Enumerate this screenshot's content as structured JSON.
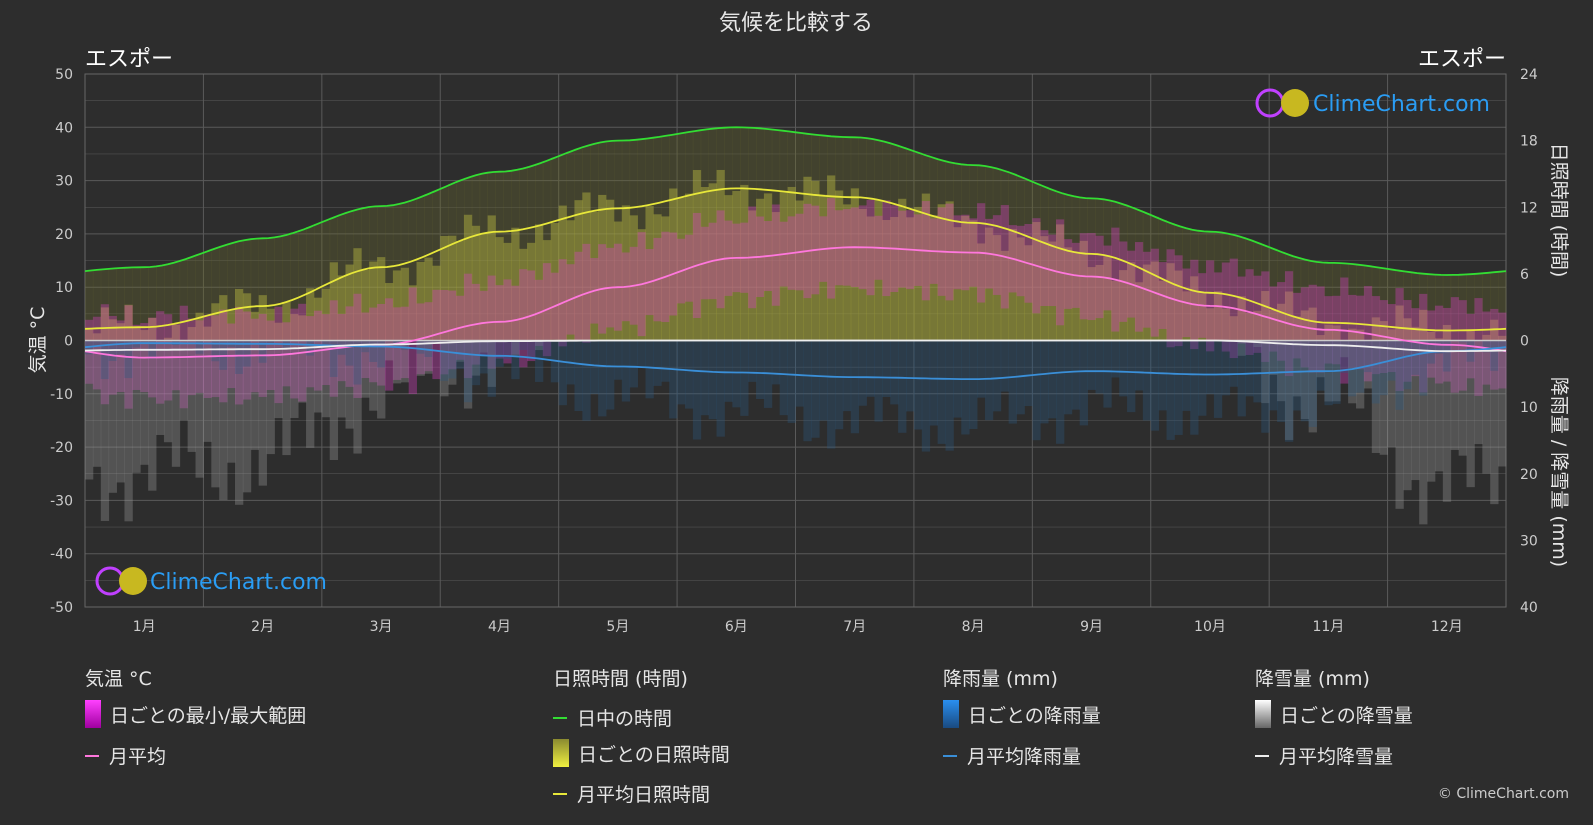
{
  "title": "気候を比較する",
  "location_left": "エスポー",
  "location_right": "エスポー",
  "copyright": "© ClimeChart.com",
  "watermark": "ClimeChart.com",
  "axes": {
    "left_label": "気温 °C",
    "right_top_label": "日照時間 (時間)",
    "right_bottom_label": "降雨量 / 降雪量 (mm)",
    "left_ticks": [
      "50",
      "40",
      "30",
      "20",
      "10",
      "0",
      "-10",
      "-20",
      "-30",
      "-40",
      "-50"
    ],
    "right_top_ticks": [
      "24",
      "18",
      "12",
      "6",
      "0"
    ],
    "right_bottom_ticks": [
      "10",
      "20",
      "30",
      "40"
    ]
  },
  "legend": {
    "temp_title": "気温 °C",
    "temp_range": "日ごとの最小/最大範囲",
    "temp_avg": "月平均",
    "sun_title": "日照時間 (時間)",
    "daylight": "日中の時間",
    "sun_daily": "日ごとの日照時間",
    "sun_avg": "月平均日照時間",
    "rain_title": "降雨量 (mm)",
    "rain_daily": "日ごとの降雨量",
    "rain_avg": "月平均降雨量",
    "snow_title": "降雪量 (mm)",
    "snow_daily": "日ごとの降雪量",
    "snow_avg": "月平均降雪量"
  },
  "colors": {
    "daylight": "#33dd33",
    "sunshine": "#e8e83a",
    "temp_avg": "#ff77dd",
    "temp_range": "#e040c8",
    "rain": "#3a8fd8",
    "snow": "#eeeeee",
    "background": "#2d2d2d",
    "grid": "#5a5a5a"
  },
  "chart_data": {
    "type": "line",
    "categories": [
      "1月",
      "2月",
      "3月",
      "4月",
      "5月",
      "6月",
      "7月",
      "8月",
      "9月",
      "10月",
      "11月",
      "12月"
    ],
    "temp_ylim": [
      -50,
      50
    ],
    "sun_ylim": [
      0,
      24
    ],
    "precip_ylim": [
      0,
      40
    ],
    "series": [
      {
        "name": "日中の時間",
        "axis": "sun",
        "values": [
          6.6,
          9.2,
          12.1,
          15.2,
          18.0,
          19.2,
          18.3,
          15.8,
          12.8,
          9.8,
          7.0,
          5.9
        ]
      },
      {
        "name": "月平均日照時間",
        "axis": "sun",
        "values": [
          1.2,
          3.1,
          6.6,
          9.8,
          11.9,
          13.7,
          12.9,
          10.6,
          7.8,
          4.3,
          1.6,
          0.9
        ]
      },
      {
        "name": "月平均",
        "axis": "temp",
        "values": [
          -3.2,
          -2.8,
          -0.8,
          3.5,
          10.0,
          15.5,
          17.5,
          16.5,
          12.0,
          6.5,
          2.0,
          -0.8
        ]
      },
      {
        "name": "月平均降雨量",
        "axis": "precip",
        "values": [
          0.4,
          0.5,
          0.9,
          2.3,
          3.9,
          4.8,
          5.5,
          5.8,
          4.6,
          5.1,
          4.6,
          1.6
        ]
      },
      {
        "name": "月平均降雪量",
        "axis": "precip",
        "values": [
          1.4,
          1.3,
          0.6,
          0.1,
          0,
          0,
          0,
          0,
          0,
          0,
          0.7,
          1.6
        ]
      }
    ]
  }
}
